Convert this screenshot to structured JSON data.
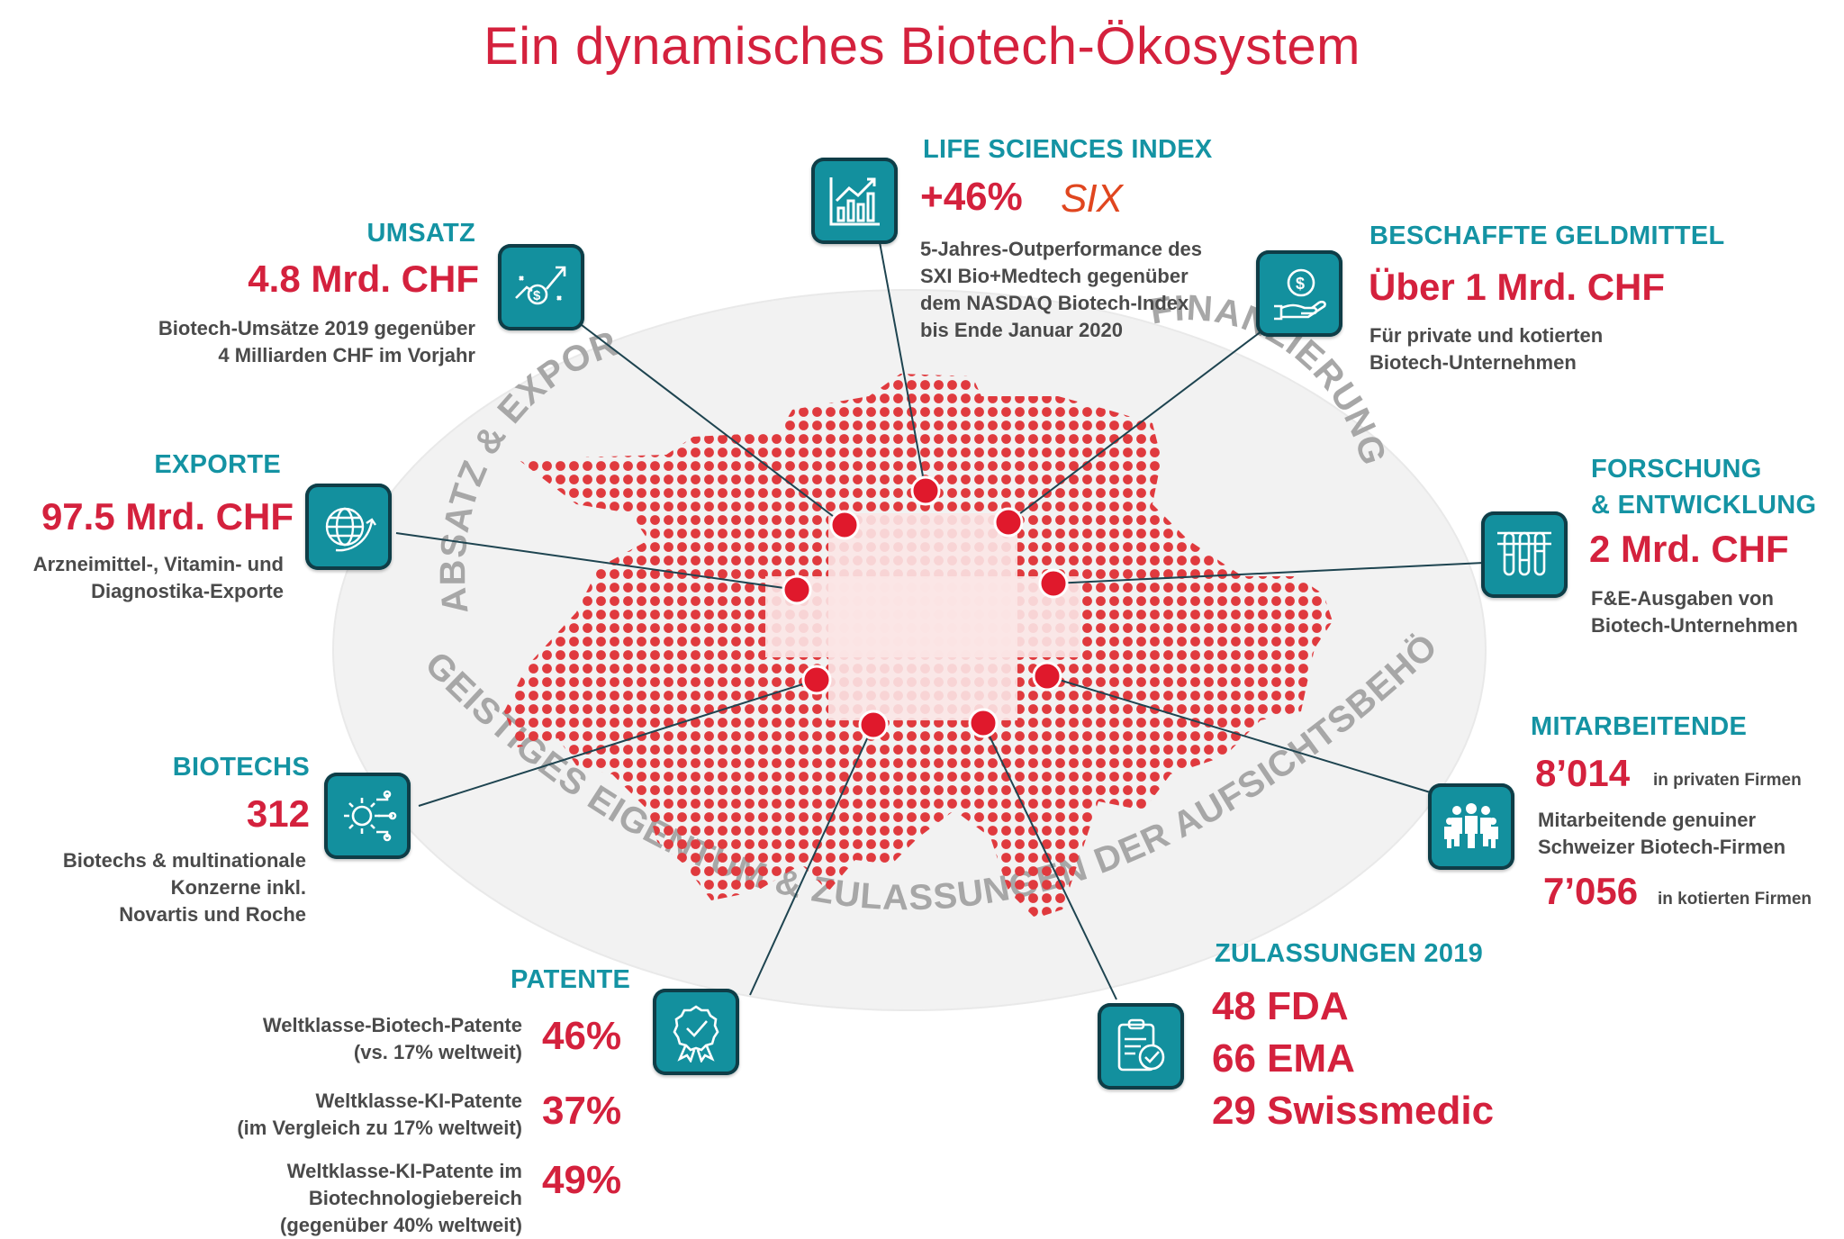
{
  "title": "Ein dynamisches Biotech-Ökosystem",
  "colors": {
    "accent_red": "#d4213d",
    "teal": "#1493a3",
    "icon_bg": "#13909e",
    "text": "#4a4a4a"
  },
  "arc_labels": {
    "left": "ABSATZ & EXPORTE",
    "right": "FINANZIERUNG",
    "bottom": "GEISTIGES EIGENTUM & ZULASSUNGEN DER AUFSICHTSBEHÖRDEN"
  },
  "life_sciences": {
    "heading": "LIFE SCIENCES INDEX",
    "value": "+46%",
    "logo": "SIX",
    "desc": [
      "5-Jahres-Outperformance des",
      "SXI Bio+Medtech gegenüber",
      "dem NASDAQ Biotech-Index",
      "bis Ende Januar 2020"
    ],
    "icon": "chart-up-icon"
  },
  "umsatz": {
    "heading": "UMSATZ",
    "value": "4.8 Mrd. CHF",
    "desc": [
      "Biotech-Umsätze 2019 gegenüber",
      "4 Milliarden CHF im Vorjahr"
    ],
    "icon": "revenue-growth-icon"
  },
  "geldmittel": {
    "heading": "BESCHAFFTE GELDMITTEL",
    "value": "Über 1 Mrd. CHF",
    "desc": [
      "Für private und kotierten",
      "Biotech-Unternehmen"
    ],
    "icon": "money-hand-icon"
  },
  "exporte": {
    "heading": "EXPORTE",
    "value": "97.5 Mrd. CHF",
    "desc": [
      "Arzneimittel-, Vitamin- und",
      "Diagnostika-Exporte"
    ],
    "icon": "globe-arrow-icon"
  },
  "forschung": {
    "heading": [
      "FORSCHUNG",
      "& ENTWICKLUNG"
    ],
    "value": "2 Mrd. CHF",
    "desc": [
      "F&E-Ausgaben von",
      "Biotech-Unternehmen"
    ],
    "icon": "test-tubes-icon"
  },
  "biotechs": {
    "heading": "BIOTECHS",
    "value": "312",
    "desc": [
      "Biotechs & multinationale",
      "Konzerne inkl.",
      "Novartis und Roche"
    ],
    "icon": "gear-circuit-icon"
  },
  "mitarbeitende": {
    "heading": "MITARBEITENDE",
    "value1": "8’014",
    "note1": "in privaten Firmen",
    "desc": [
      "Mitarbeitende genuiner",
      "Schweizer Biotech-Firmen"
    ],
    "value2": "7’056",
    "note2": "in kotierten Firmen",
    "icon": "people-group-icon"
  },
  "patente": {
    "heading": "PATENTE",
    "items": [
      {
        "label": [
          "Weltklasse-Biotech-Patente",
          "(vs. 17% weltweit)"
        ],
        "value": "46%"
      },
      {
        "label": [
          "Weltklasse-KI-Patente",
          "(im Vergleich zu 17% weltweit)"
        ],
        "value": "37%"
      },
      {
        "label": [
          "Weltklasse-KI-Patente im",
          "Biotechnologiebereich",
          "(gegenüber 40% weltweit)"
        ],
        "value": "49%"
      }
    ],
    "icon": "award-ribbon-icon"
  },
  "zulassungen": {
    "heading": "ZULASSUNGEN 2019",
    "values": [
      "48 FDA",
      "66 EMA",
      "29 Swissmedic"
    ],
    "icon": "clipboard-check-icon"
  }
}
